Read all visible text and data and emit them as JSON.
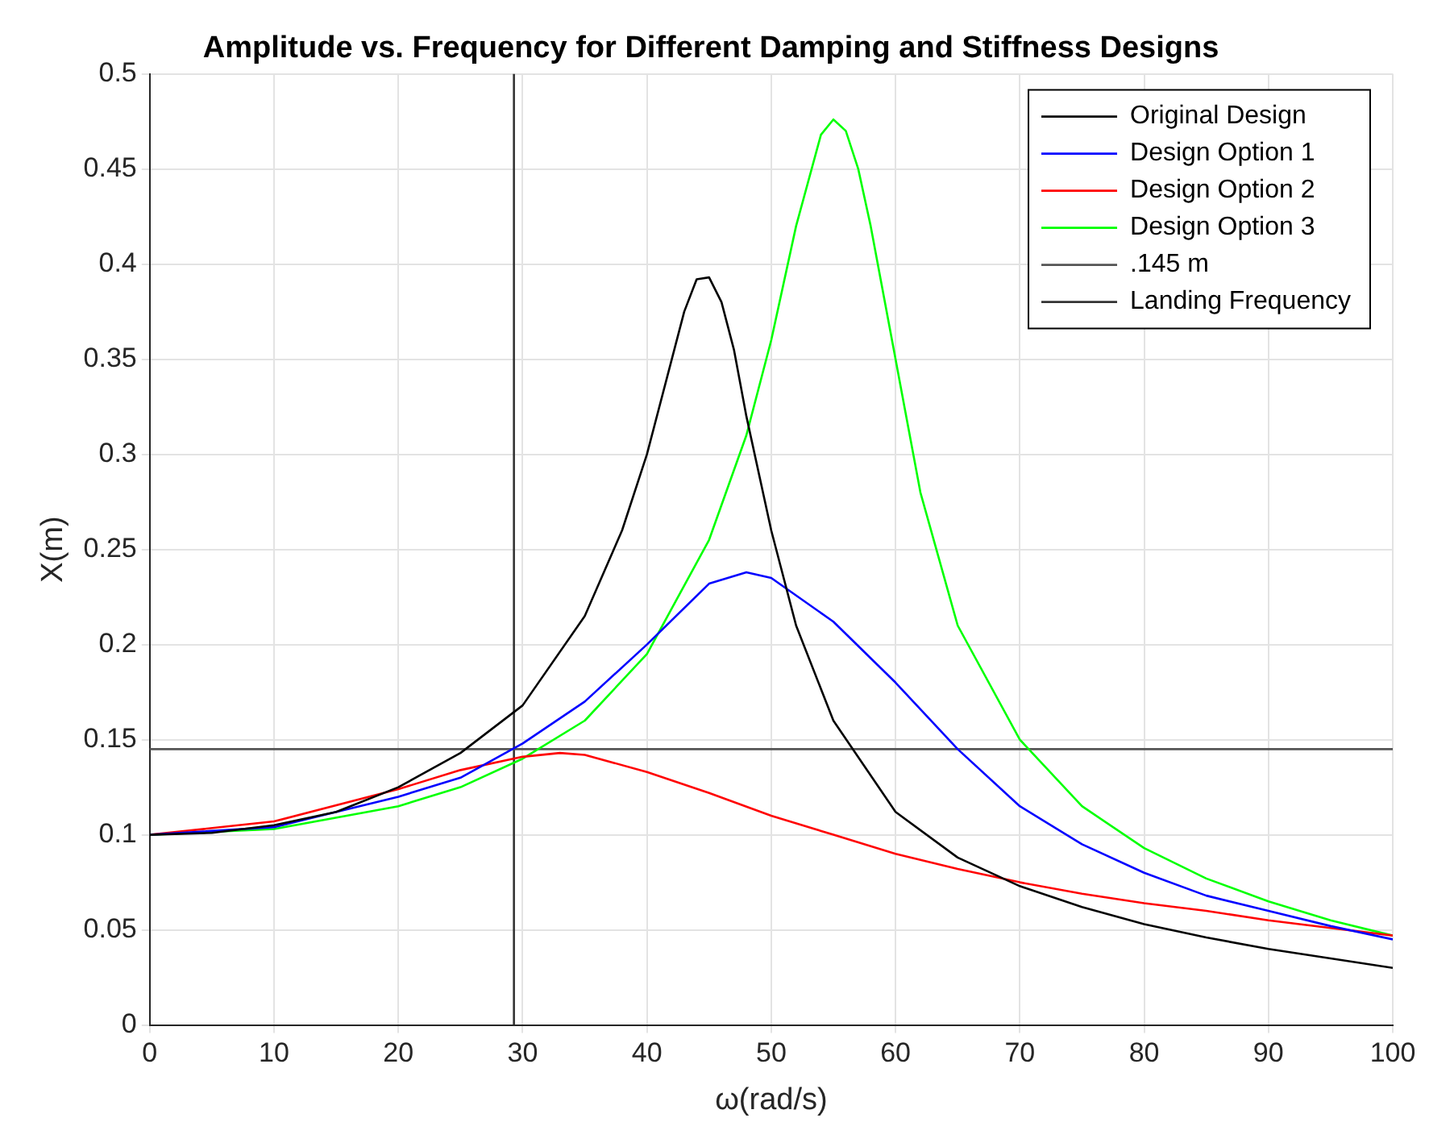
{
  "chart_data": {
    "type": "line",
    "title": "Amplitude vs. Frequency for Different Damping and Stiffness Designs",
    "xlabel": "ω(rad/s)",
    "ylabel": "X(m)",
    "xlim": [
      0,
      100
    ],
    "xticks": [
      0,
      10,
      20,
      30,
      40,
      50,
      60,
      70,
      80,
      90,
      100
    ],
    "ylim": [
      0,
      0.5
    ],
    "yticks": [
      0,
      0.05,
      0.1,
      0.15,
      0.2,
      0.25,
      0.3,
      0.35,
      0.4,
      0.45,
      0.5
    ],
    "grid": true,
    "legend": "top right",
    "marker": "none",
    "line_style": "solid",
    "series": [
      {
        "name": "Original Design",
        "color": "#000000",
        "x": [
          0,
          5,
          10,
          15,
          20,
          25,
          30,
          35,
          38,
          40,
          42,
          43,
          44,
          45,
          46,
          47,
          48,
          50,
          52,
          55,
          60,
          65,
          70,
          75,
          80,
          85,
          90,
          95,
          100
        ],
        "values": [
          0.1,
          0.101,
          0.105,
          0.112,
          0.125,
          0.143,
          0.168,
          0.215,
          0.26,
          0.3,
          0.35,
          0.375,
          0.392,
          0.393,
          0.38,
          0.355,
          0.32,
          0.26,
          0.21,
          0.16,
          0.112,
          0.088,
          0.073,
          0.062,
          0.053,
          0.046,
          0.04,
          0.035,
          0.03
        ]
      },
      {
        "name": "Design Option 1",
        "color": "#0000ff",
        "x": [
          0,
          10,
          20,
          25,
          30,
          35,
          40,
          45,
          48,
          50,
          55,
          60,
          65,
          70,
          75,
          80,
          85,
          90,
          95,
          100
        ],
        "values": [
          0.1,
          0.104,
          0.12,
          0.13,
          0.148,
          0.17,
          0.2,
          0.232,
          0.238,
          0.235,
          0.212,
          0.18,
          0.145,
          0.115,
          0.095,
          0.08,
          0.068,
          0.06,
          0.052,
          0.045
        ]
      },
      {
        "name": "Design Option 2",
        "color": "#ff0000",
        "x": [
          0,
          10,
          20,
          25,
          30,
          33,
          35,
          40,
          45,
          50,
          55,
          60,
          65,
          70,
          75,
          80,
          85,
          90,
          95,
          100
        ],
        "values": [
          0.1,
          0.107,
          0.124,
          0.134,
          0.141,
          0.143,
          0.142,
          0.133,
          0.122,
          0.11,
          0.1,
          0.09,
          0.082,
          0.075,
          0.069,
          0.064,
          0.06,
          0.055,
          0.051,
          0.047
        ]
      },
      {
        "name": "Design Option 3",
        "color": "#00ff00",
        "x": [
          0,
          10,
          20,
          25,
          30,
          35,
          40,
          45,
          48,
          50,
          52,
          54,
          55,
          56,
          57,
          58,
          60,
          62,
          65,
          70,
          75,
          80,
          85,
          90,
          95,
          100
        ],
        "values": [
          0.1,
          0.103,
          0.115,
          0.125,
          0.14,
          0.16,
          0.195,
          0.255,
          0.31,
          0.36,
          0.42,
          0.468,
          0.476,
          0.47,
          0.45,
          0.42,
          0.35,
          0.28,
          0.21,
          0.15,
          0.115,
          0.093,
          0.077,
          0.065,
          0.055,
          0.047
        ]
      },
      {
        "name": ".145 m",
        "color": "#555555",
        "x": [
          0,
          100
        ],
        "values": [
          0.145,
          0.145
        ]
      },
      {
        "name": "Landing Frequency",
        "color": "#333333",
        "x": [
          29.3,
          29.3
        ],
        "values": [
          0,
          0.5
        ]
      }
    ]
  }
}
